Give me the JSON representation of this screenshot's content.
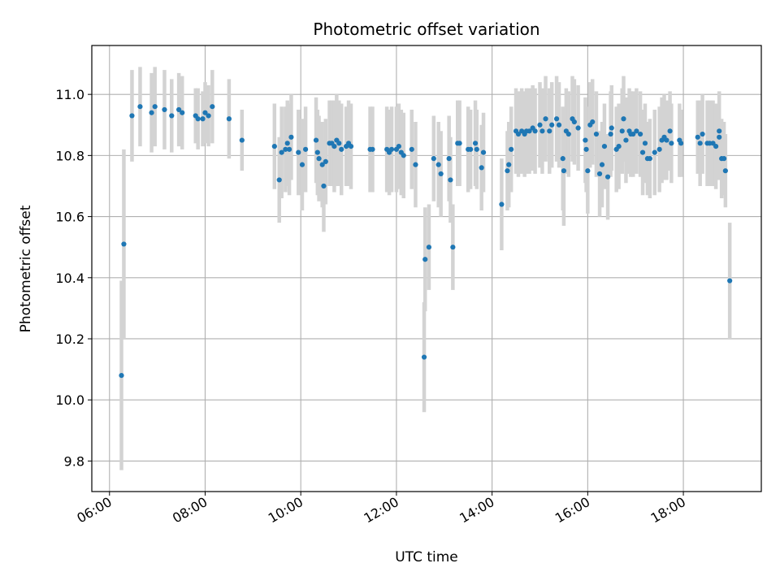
{
  "chart_data": {
    "type": "scatter",
    "title": "Photometric offset variation",
    "xlabel": "UTC time",
    "ylabel": "Photometric offset",
    "x_unit": "hours",
    "xlim": [
      5.63,
      19.63
    ],
    "ylim": [
      9.7,
      11.16
    ],
    "x_ticks": [
      6,
      8,
      10,
      12,
      14,
      16,
      18
    ],
    "x_tick_labels": [
      "06:00",
      "08:00",
      "10:00",
      "12:00",
      "14:00",
      "16:00",
      "18:00"
    ],
    "y_ticks": [
      9.8,
      10.0,
      10.2,
      10.4,
      10.6,
      10.8,
      11.0
    ],
    "y_tick_labels": [
      "9.8",
      "10.0",
      "10.2",
      "10.4",
      "10.6",
      "10.8",
      "11.0"
    ],
    "grid": true,
    "legend": "none",
    "colors": {
      "point": "#1f77b4",
      "errorbar": "#d3d3d3",
      "grid": "#b0b0b0"
    },
    "series": [
      {
        "points": [
          [
            6.25,
            10.08,
            0.31
          ],
          [
            6.3,
            10.51,
            0.31
          ],
          [
            6.47,
            10.93,
            0.15
          ],
          [
            6.64,
            10.96,
            0.13
          ],
          [
            6.88,
            10.94,
            0.13
          ],
          [
            6.95,
            10.96,
            0.13
          ],
          [
            7.15,
            10.95,
            0.13
          ],
          [
            7.3,
            10.93,
            0.12
          ],
          [
            7.45,
            10.95,
            0.12
          ],
          [
            7.52,
            10.94,
            0.12
          ],
          [
            7.8,
            10.93,
            0.09
          ],
          [
            7.85,
            10.92,
            0.1
          ],
          [
            7.95,
            10.92,
            0.09
          ],
          [
            8.0,
            10.94,
            0.1
          ],
          [
            8.07,
            10.93,
            0.1
          ],
          [
            8.15,
            10.96,
            0.12
          ],
          [
            8.5,
            10.92,
            0.13
          ],
          [
            8.77,
            10.85,
            0.1
          ],
          [
            9.45,
            10.83,
            0.14
          ],
          [
            9.55,
            10.72,
            0.14
          ],
          [
            9.6,
            10.81,
            0.15
          ],
          [
            9.68,
            10.82,
            0.14
          ],
          [
            9.72,
            10.84,
            0.14
          ],
          [
            9.76,
            10.82,
            0.15
          ],
          [
            9.8,
            10.86,
            0.14
          ],
          [
            9.95,
            10.81,
            0.14
          ],
          [
            10.03,
            10.77,
            0.15
          ],
          [
            10.1,
            10.82,
            0.14
          ],
          [
            10.32,
            10.85,
            0.14
          ],
          [
            10.35,
            10.81,
            0.14
          ],
          [
            10.38,
            10.79,
            0.14
          ],
          [
            10.45,
            10.77,
            0.14
          ],
          [
            10.48,
            10.7,
            0.15
          ],
          [
            10.52,
            10.78,
            0.14
          ],
          [
            10.6,
            10.84,
            0.14
          ],
          [
            10.65,
            10.84,
            0.14
          ],
          [
            10.7,
            10.83,
            0.15
          ],
          [
            10.75,
            10.85,
            0.15
          ],
          [
            10.8,
            10.84,
            0.14
          ],
          [
            10.85,
            10.82,
            0.15
          ],
          [
            10.95,
            10.83,
            0.13
          ],
          [
            11.0,
            10.84,
            0.14
          ],
          [
            11.05,
            10.83,
            0.14
          ],
          [
            11.45,
            10.82,
            0.14
          ],
          [
            11.5,
            10.82,
            0.14
          ],
          [
            11.8,
            10.82,
            0.14
          ],
          [
            11.85,
            10.81,
            0.14
          ],
          [
            11.9,
            10.82,
            0.14
          ],
          [
            12.0,
            10.82,
            0.14
          ],
          [
            12.05,
            10.83,
            0.14
          ],
          [
            12.1,
            10.81,
            0.14
          ],
          [
            12.15,
            10.8,
            0.14
          ],
          [
            12.32,
            10.82,
            0.13
          ],
          [
            12.4,
            10.77,
            0.14
          ],
          [
            12.58,
            10.14,
            0.18
          ],
          [
            12.6,
            10.46,
            0.17
          ],
          [
            12.68,
            10.5,
            0.14
          ],
          [
            12.78,
            10.79,
            0.14
          ],
          [
            12.88,
            10.77,
            0.14
          ],
          [
            12.93,
            10.74,
            0.14
          ],
          [
            13.1,
            10.79,
            0.14
          ],
          [
            13.13,
            10.72,
            0.14
          ],
          [
            13.18,
            10.5,
            0.14
          ],
          [
            13.28,
            10.84,
            0.14
          ],
          [
            13.32,
            10.84,
            0.14
          ],
          [
            13.5,
            10.82,
            0.14
          ],
          [
            13.55,
            10.82,
            0.13
          ],
          [
            13.65,
            10.84,
            0.14
          ],
          [
            13.68,
            10.82,
            0.13
          ],
          [
            13.78,
            10.76,
            0.14
          ],
          [
            13.82,
            10.81,
            0.13
          ],
          [
            14.2,
            10.64,
            0.15
          ],
          [
            14.32,
            10.75,
            0.13
          ],
          [
            14.35,
            10.77,
            0.14
          ],
          [
            14.4,
            10.82,
            0.14
          ],
          [
            14.5,
            10.88,
            0.14
          ],
          [
            14.55,
            10.87,
            0.14
          ],
          [
            14.62,
            10.88,
            0.14
          ],
          [
            14.68,
            10.87,
            0.14
          ],
          [
            14.72,
            10.88,
            0.14
          ],
          [
            14.78,
            10.88,
            0.14
          ],
          [
            14.85,
            10.89,
            0.14
          ],
          [
            14.9,
            10.88,
            0.14
          ],
          [
            15.0,
            10.9,
            0.14
          ],
          [
            15.05,
            10.88,
            0.14
          ],
          [
            15.12,
            10.92,
            0.14
          ],
          [
            15.2,
            10.88,
            0.14
          ],
          [
            15.25,
            10.9,
            0.14
          ],
          [
            15.35,
            10.92,
            0.14
          ],
          [
            15.4,
            10.9,
            0.14
          ],
          [
            15.48,
            10.79,
            0.17
          ],
          [
            15.5,
            10.75,
            0.18
          ],
          [
            15.55,
            10.88,
            0.14
          ],
          [
            15.6,
            10.87,
            0.14
          ],
          [
            15.68,
            10.92,
            0.14
          ],
          [
            15.72,
            10.91,
            0.14
          ],
          [
            15.8,
            10.89,
            0.14
          ],
          [
            15.95,
            10.85,
            0.14
          ],
          [
            15.97,
            10.82,
            0.14
          ],
          [
            16.0,
            10.75,
            0.14
          ],
          [
            16.05,
            10.9,
            0.14
          ],
          [
            16.1,
            10.91,
            0.14
          ],
          [
            16.18,
            10.87,
            0.14
          ],
          [
            16.25,
            10.74,
            0.14
          ],
          [
            16.3,
            10.77,
            0.14
          ],
          [
            16.35,
            10.83,
            0.14
          ],
          [
            16.42,
            10.73,
            0.14
          ],
          [
            16.48,
            10.87,
            0.14
          ],
          [
            16.5,
            10.89,
            0.14
          ],
          [
            16.6,
            10.82,
            0.14
          ],
          [
            16.65,
            10.83,
            0.14
          ],
          [
            16.72,
            10.88,
            0.14
          ],
          [
            16.75,
            10.92,
            0.14
          ],
          [
            16.8,
            10.85,
            0.14
          ],
          [
            16.87,
            10.88,
            0.14
          ],
          [
            16.9,
            10.87,
            0.14
          ],
          [
            16.95,
            10.87,
            0.14
          ],
          [
            17.02,
            10.88,
            0.14
          ],
          [
            17.1,
            10.87,
            0.14
          ],
          [
            17.15,
            10.81,
            0.14
          ],
          [
            17.2,
            10.84,
            0.13
          ],
          [
            17.25,
            10.79,
            0.12
          ],
          [
            17.3,
            10.79,
            0.13
          ],
          [
            17.4,
            10.81,
            0.14
          ],
          [
            17.5,
            10.82,
            0.14
          ],
          [
            17.55,
            10.85,
            0.14
          ],
          [
            17.6,
            10.86,
            0.14
          ],
          [
            17.65,
            10.85,
            0.13
          ],
          [
            17.72,
            10.88,
            0.13
          ],
          [
            17.75,
            10.84,
            0.13
          ],
          [
            17.92,
            10.85,
            0.12
          ],
          [
            17.95,
            10.84,
            0.11
          ],
          [
            18.3,
            10.86,
            0.12
          ],
          [
            18.35,
            10.84,
            0.14
          ],
          [
            18.4,
            10.87,
            0.13
          ],
          [
            18.5,
            10.84,
            0.14
          ],
          [
            18.55,
            10.84,
            0.14
          ],
          [
            18.62,
            10.84,
            0.14
          ],
          [
            18.68,
            10.83,
            0.14
          ],
          [
            18.75,
            10.86,
            0.14
          ],
          [
            18.75,
            10.88,
            0.13
          ],
          [
            18.8,
            10.79,
            0.13
          ],
          [
            18.85,
            10.79,
            0.12
          ],
          [
            18.88,
            10.75,
            0.12
          ],
          [
            18.97,
            10.39,
            0.19
          ]
        ]
      }
    ]
  }
}
